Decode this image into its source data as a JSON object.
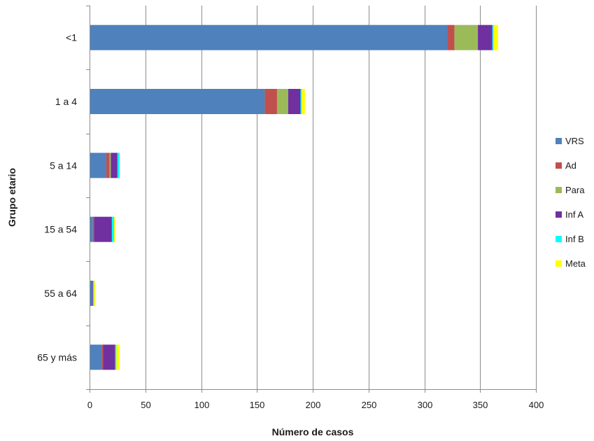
{
  "chart_data": {
    "type": "bar",
    "orientation": "horizontal",
    "stacked": true,
    "title": "",
    "xlabel": "Número de casos",
    "ylabel": "Grupo etario",
    "xlim": [
      0,
      400
    ],
    "xticks": [
      0,
      50,
      100,
      150,
      200,
      250,
      300,
      350,
      400
    ],
    "grid": "vertical",
    "legend": "right",
    "categories": [
      "<1",
      "1 a 4",
      "5 a 14",
      "15 a 54",
      "55 a 64",
      "65 y más"
    ],
    "series": [
      {
        "name": "VRS",
        "color": "#4f81bd",
        "values": [
          321,
          157,
          15,
          3,
          2,
          11
        ]
      },
      {
        "name": "Ad",
        "color": "#c0504d",
        "values": [
          6,
          11,
          3,
          1,
          0,
          1
        ]
      },
      {
        "name": "Para",
        "color": "#9bbb59",
        "values": [
          21,
          10,
          1,
          0,
          0,
          0
        ]
      },
      {
        "name": "Inf A",
        "color": "#7030a0",
        "values": [
          13,
          11,
          6,
          16,
          1,
          11
        ]
      },
      {
        "name": "Inf B",
        "color": "#00ffff",
        "values": [
          1,
          1,
          2,
          2,
          1,
          1
        ]
      },
      {
        "name": "Meta",
        "color": "#ffff00",
        "values": [
          4,
          3,
          0,
          1,
          1,
          3
        ]
      }
    ]
  }
}
